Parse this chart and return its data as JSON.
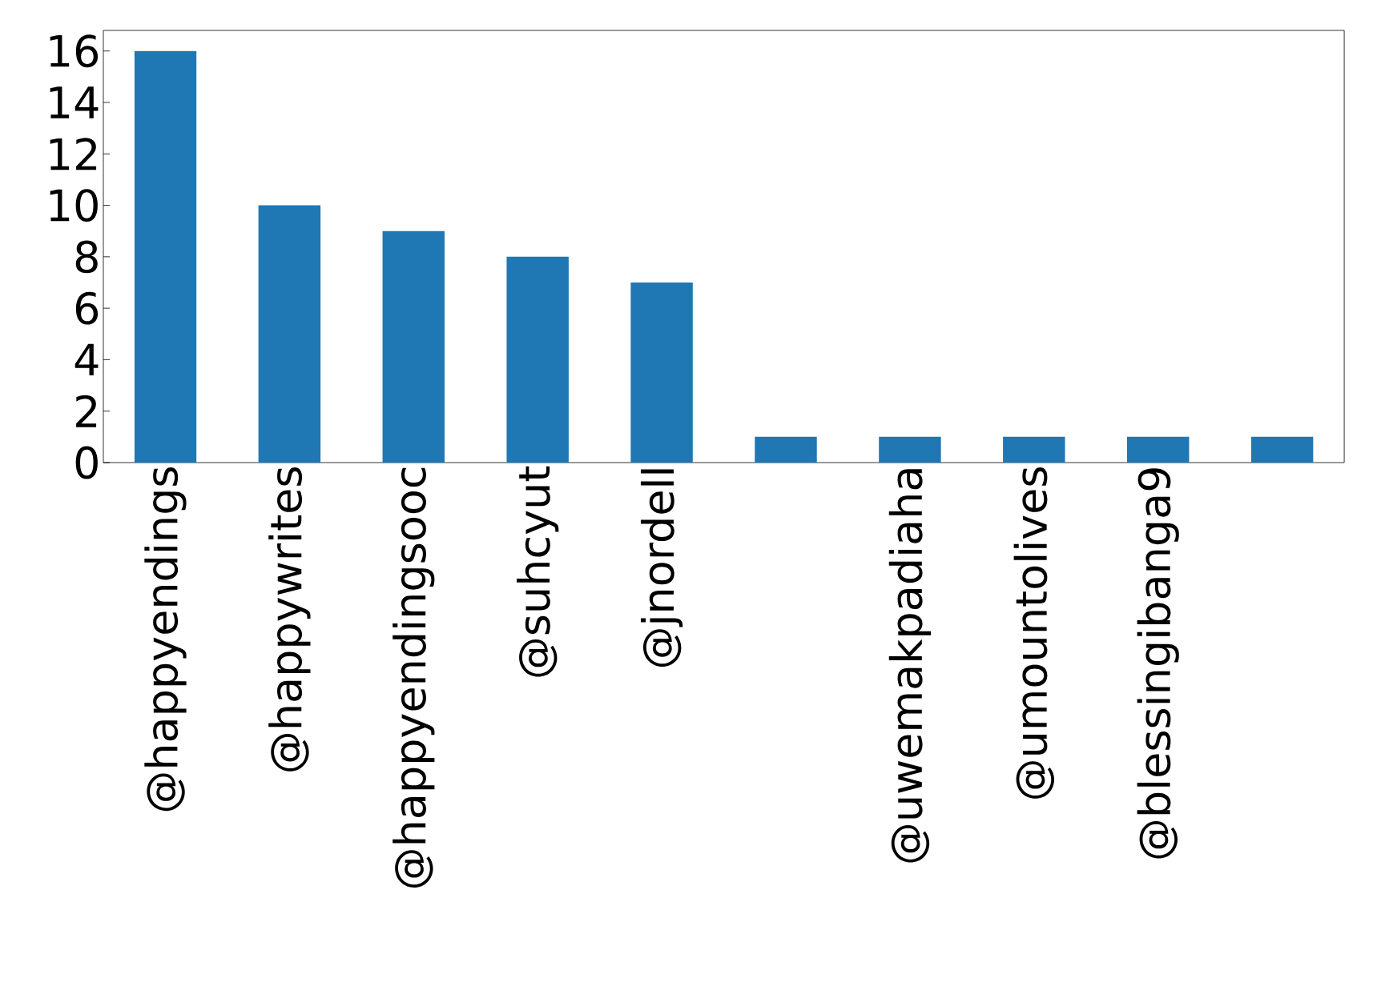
{
  "chart_data": {
    "type": "bar",
    "categories": [
      "@happyendings",
      "@happywrites",
      "@happyendingsooc",
      "@suhcyut",
      "@jnordell",
      null,
      "@uwemakpadiaha",
      "@umountolives",
      "@blessingibanga9",
      null
    ],
    "values": [
      16,
      10,
      9,
      8,
      7,
      1,
      1,
      1,
      1,
      1
    ],
    "color": "#1f77b4",
    "ylim": [
      0,
      16.8
    ],
    "yticks": [
      0,
      2,
      4,
      6,
      8,
      10,
      12,
      14,
      16
    ]
  }
}
